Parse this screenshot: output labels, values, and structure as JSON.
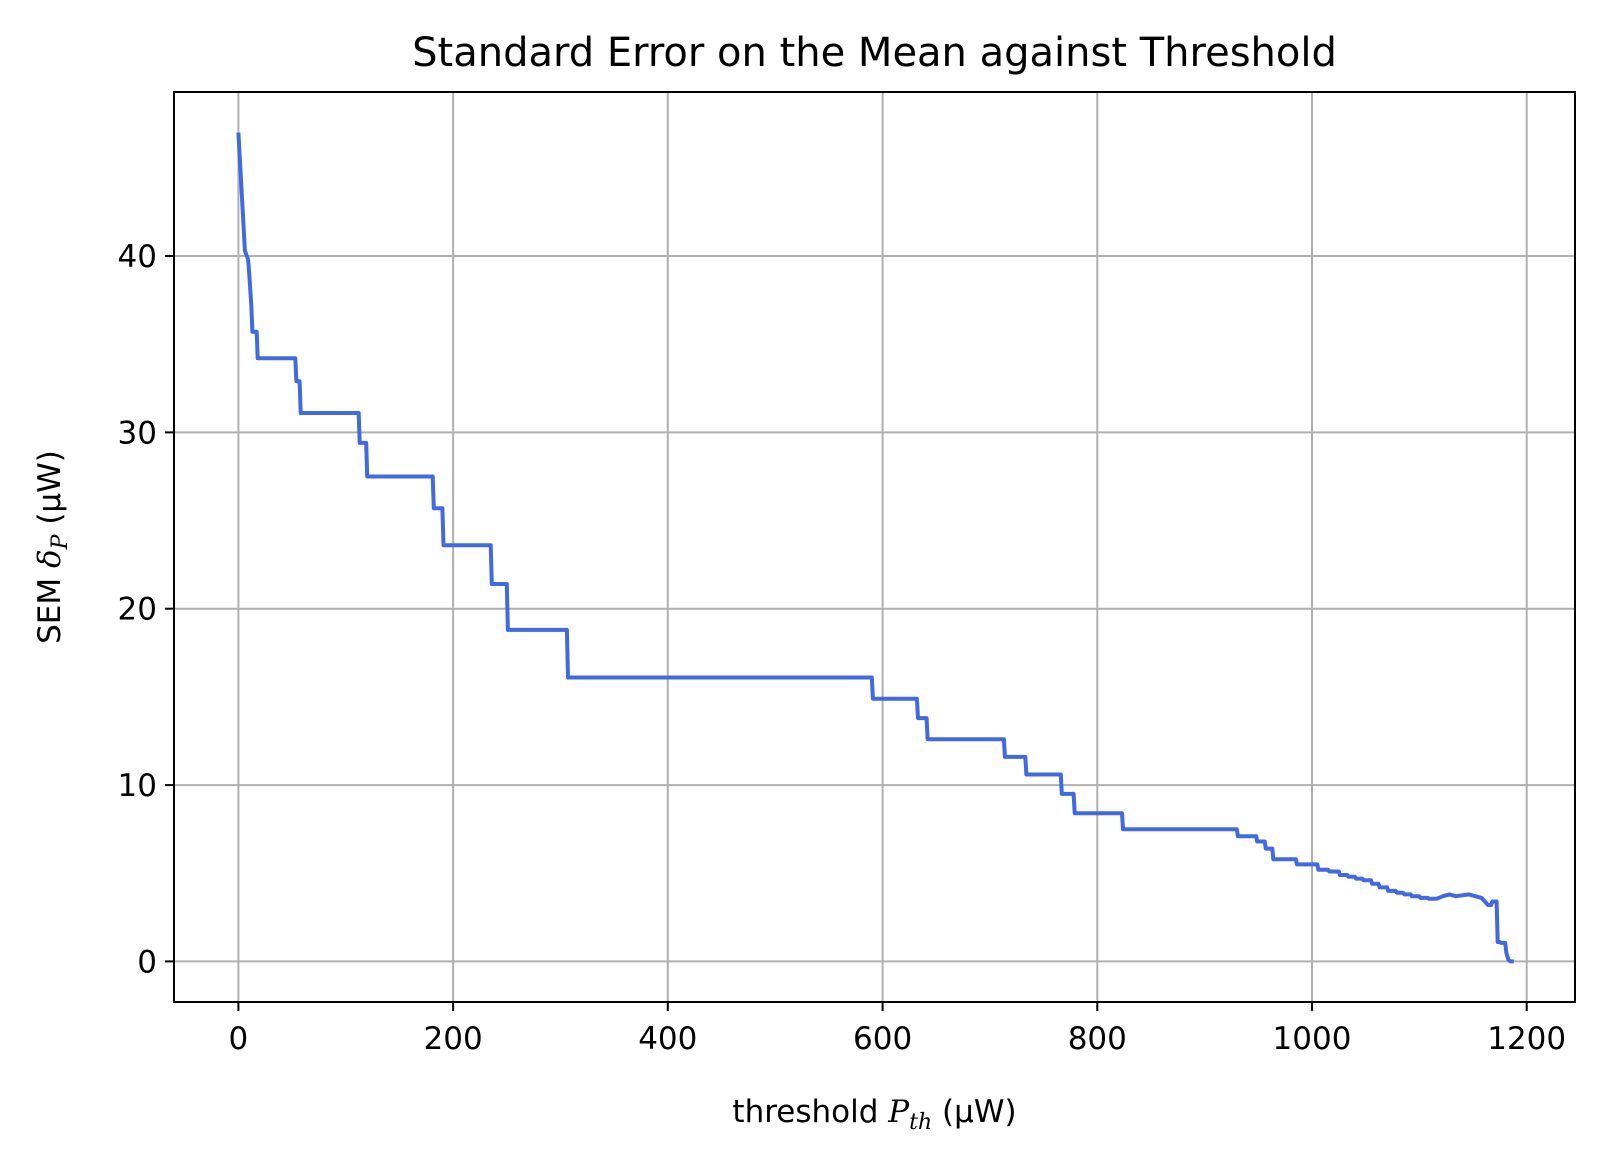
{
  "chart_data": {
    "type": "line",
    "title": "Standard Error on the Mean against Threshold",
    "xlabel": {
      "prefix": "threshold ",
      "symbol": "P",
      "subscript": "th",
      "units": " (μW)"
    },
    "ylabel": {
      "prefix": "SEM ",
      "symbol": "δ",
      "subscript": "P",
      "units": " (μW)"
    },
    "xlim": [
      -60,
      1245
    ],
    "ylim": [
      -2.3,
      49.3
    ],
    "xticks": [
      0,
      200,
      400,
      600,
      800,
      1000,
      1200
    ],
    "yticks": [
      0,
      10,
      20,
      30,
      40
    ],
    "grid": true,
    "color": "#4169e1",
    "series": [
      {
        "x": [
          0,
          6,
          9,
          10,
          12,
          13,
          17,
          18,
          53,
          54,
          57,
          58,
          112,
          113,
          119,
          120,
          181,
          182,
          190,
          191,
          235,
          236,
          250,
          251,
          306,
          307,
          590,
          591,
          632,
          633,
          641,
          642,
          713,
          714,
          733,
          734,
          766,
          767,
          778,
          779,
          823,
          824,
          930,
          931,
          948,
          949,
          956,
          957,
          963,
          964,
          985,
          986,
          1005,
          1006,
          1015,
          1016,
          1025,
          1026,
          1033,
          1034,
          1040,
          1041,
          1047,
          1048,
          1055,
          1056,
          1062,
          1063,
          1070,
          1071,
          1078,
          1079,
          1085,
          1086,
          1092,
          1093,
          1100,
          1101,
          1108,
          1109,
          1115,
          1116,
          1122,
          1128,
          1134,
          1140,
          1146,
          1152,
          1158,
          1164,
          1167,
          1168,
          1172,
          1173,
          1175,
          1176,
          1180,
          1181,
          1183,
          1185,
          1188
        ],
        "y": [
          47,
          40.3,
          39.8,
          39.1,
          37.2,
          35.7,
          35.7,
          34.2,
          34.2,
          32.9,
          32.9,
          31.1,
          31.1,
          29.4,
          29.4,
          27.5,
          27.5,
          25.7,
          25.7,
          23.6,
          23.6,
          21.4,
          21.4,
          18.8,
          18.8,
          16.1,
          16.1,
          14.9,
          14.9,
          13.8,
          13.8,
          12.6,
          12.6,
          11.6,
          11.6,
          10.6,
          10.6,
          9.5,
          9.5,
          8.4,
          8.4,
          7.5,
          7.5,
          7.1,
          7.1,
          6.8,
          6.8,
          6.4,
          6.4,
          5.8,
          5.8,
          5.5,
          5.5,
          5.2,
          5.2,
          5.1,
          5.1,
          4.9,
          4.9,
          4.8,
          4.8,
          4.7,
          4.7,
          4.6,
          4.6,
          4.4,
          4.4,
          4.2,
          4.2,
          4.0,
          4.0,
          3.9,
          3.9,
          3.8,
          3.8,
          3.7,
          3.7,
          3.6,
          3.6,
          3.55,
          3.55,
          3.55,
          3.7,
          3.8,
          3.7,
          3.75,
          3.8,
          3.7,
          3.6,
          3.2,
          3.2,
          3.4,
          3.4,
          1.1,
          1.1,
          1.05,
          1.05,
          0.5,
          0.1,
          0,
          0
        ]
      }
    ]
  }
}
